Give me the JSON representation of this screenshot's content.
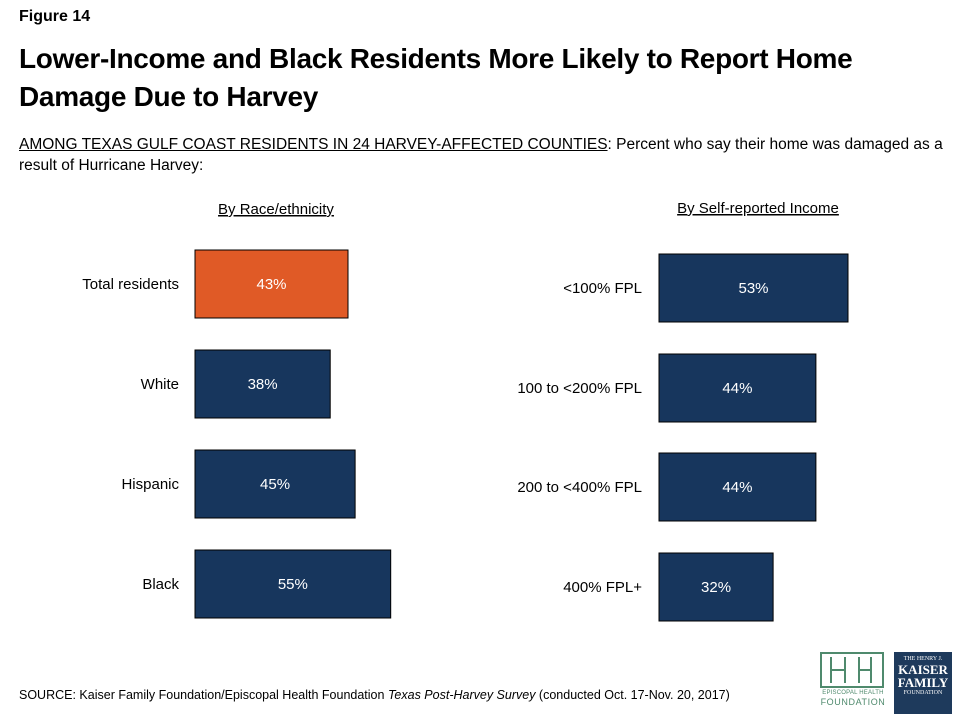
{
  "figure_label": "Figure 14",
  "title": "Lower-Income and Black Residents More Likely to Report Home Damage Due to Harvey",
  "subtitle_lead": "AMONG TEXAS GULF COAST RESIDENTS IN 24 HARVEY-AFFECTED COUNTIES",
  "subtitle_rest": ": Percent who say their home was damaged as a result of Hurricane Harvey:",
  "colors": {
    "highlight": "#e05a26",
    "bar": "#17365d",
    "label_text": "#ffffff"
  },
  "chart_data": [
    {
      "type": "bar",
      "orientation": "horizontal",
      "title": "By Race/ethnicity",
      "categories": [
        "Total residents",
        "White",
        "Hispanic",
        "Black"
      ],
      "values": [
        43,
        38,
        45,
        55
      ],
      "data_labels": [
        "43%",
        "38%",
        "45%",
        "55%"
      ],
      "highlight_index": 0,
      "xlim": [
        0,
        100
      ],
      "grid": false,
      "legend": "none"
    },
    {
      "type": "bar",
      "orientation": "horizontal",
      "title": "By Self-reported Income",
      "categories": [
        "<100% FPL",
        "100 to <200% FPL",
        "200 to <400% FPL",
        "400% FPL+"
      ],
      "values": [
        53,
        44,
        44,
        32
      ],
      "data_labels": [
        "53%",
        "44%",
        "44%",
        "32%"
      ],
      "highlight_index": null,
      "xlim": [
        0,
        100
      ],
      "grid": false,
      "legend": "none"
    }
  ],
  "source": {
    "prefix": "SOURCE: Kaiser Family Foundation/Episcopal Health Foundation ",
    "publication": "Texas Post-Harvey Survey",
    "suffix": " (conducted Oct. 17-Nov. 20, 2017)"
  },
  "logos": {
    "ehf_line1": "EPISCOPAL HEALTH",
    "ehf_line2": "FOUNDATION",
    "kff_line1": "THE HENRY J.",
    "kff_line2": "KAISER",
    "kff_line3": "FAMILY",
    "kff_line4": "FOUNDATION"
  }
}
